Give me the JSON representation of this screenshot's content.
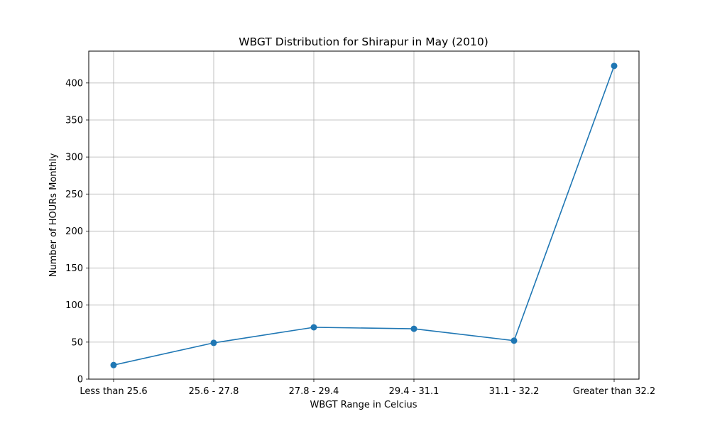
{
  "chart_data": {
    "type": "line",
    "title": "WBGT Distribution for Shirapur in May (2010)",
    "xlabel": "WBGT Range in Celcius",
    "ylabel": "Number of HOURs Monthly",
    "categories": [
      "Less than 25.6",
      "25.6 - 27.8",
      "27.8 - 29.4",
      "29.4 - 31.1",
      "31.1 - 32.2",
      "Greater than 32.2"
    ],
    "values": [
      19,
      49,
      70,
      68,
      52,
      423
    ],
    "ylim": [
      0,
      443
    ],
    "yticks": [
      0,
      50,
      100,
      150,
      200,
      250,
      300,
      350,
      400
    ],
    "grid": true,
    "marker": "circle",
    "color": "#1f77b4"
  }
}
